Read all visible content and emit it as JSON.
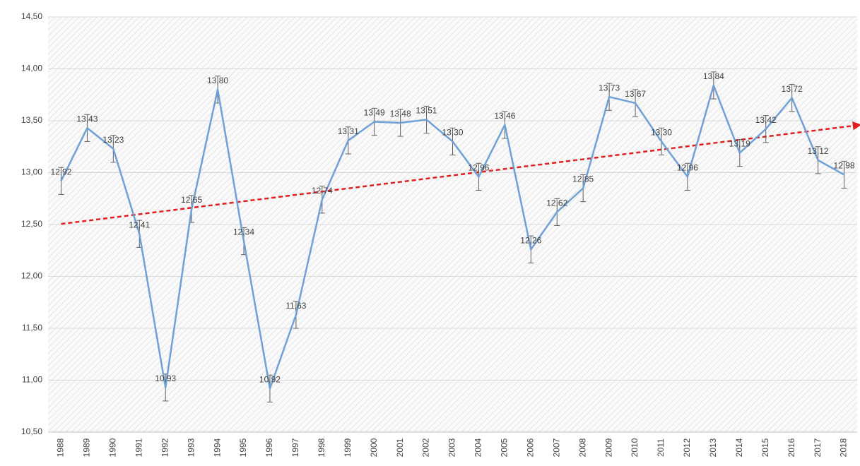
{
  "chart_data": {
    "type": "line",
    "categories": [
      "1988",
      "1989",
      "1990",
      "1991",
      "1992",
      "1993",
      "1994",
      "1995",
      "1996",
      "1997",
      "1998",
      "1999",
      "2000",
      "2001",
      "2002",
      "2003",
      "2004",
      "2005",
      "2006",
      "2007",
      "2008",
      "2009",
      "2010",
      "2011",
      "2012",
      "2013",
      "2014",
      "2015",
      "2016",
      "2017",
      "2018"
    ],
    "series": [
      {
        "name": "",
        "color": "#6fa0d8",
        "values": [
          12.92,
          13.43,
          13.23,
          12.41,
          10.93,
          12.65,
          13.8,
          12.34,
          10.92,
          11.63,
          12.74,
          13.31,
          13.49,
          13.48,
          13.51,
          13.3,
          12.96,
          13.46,
          12.26,
          12.62,
          12.85,
          13.73,
          13.67,
          13.3,
          12.96,
          13.84,
          13.19,
          13.42,
          13.72,
          13.12,
          12.98
        ],
        "value_labels": [
          "12,92",
          "13,43",
          "13,23",
          "12,41",
          "10,93",
          "12,65",
          "13,80",
          "12,34",
          "10,92",
          "11,63",
          "12,74",
          "13,31",
          "13,49",
          "13,48",
          "13,51",
          "13,30",
          "12,96",
          "13,46",
          "12,26",
          "12,62",
          "12,85",
          "13,73",
          "13,67",
          "13,30",
          "12,96",
          "13,84",
          "13,19",
          "13,42",
          "13,72",
          "13,12",
          "12,98"
        ],
        "errors": [
          0.13,
          0.13,
          0.13,
          0.13,
          0.13,
          0.13,
          0.13,
          0.13,
          0.13,
          0.13,
          0.13,
          0.13,
          0.13,
          0.13,
          0.13,
          0.13,
          0.13,
          0.13,
          0.13,
          0.13,
          0.13,
          0.13,
          0.13,
          0.13,
          0.13,
          0.13,
          0.13,
          0.13,
          0.13,
          0.13,
          0.13
        ]
      }
    ],
    "trendline": {
      "type": "linear",
      "color": "#e02020"
    },
    "ylim": [
      10.5,
      14.5
    ],
    "yticks": [
      {
        "value": 10.5,
        "label": "10,50"
      },
      {
        "value": 11,
        "label": "11,00"
      },
      {
        "value": 11.5,
        "label": "11,50"
      },
      {
        "value": 12,
        "label": "12,00"
      },
      {
        "value": 12.5,
        "label": "12,50"
      },
      {
        "value": 13,
        "label": "13,00"
      },
      {
        "value": 13.5,
        "label": "13,50"
      },
      {
        "value": 14,
        "label": "14,00"
      },
      {
        "value": 14.5,
        "label": "14,50"
      }
    ],
    "grid": true
  }
}
